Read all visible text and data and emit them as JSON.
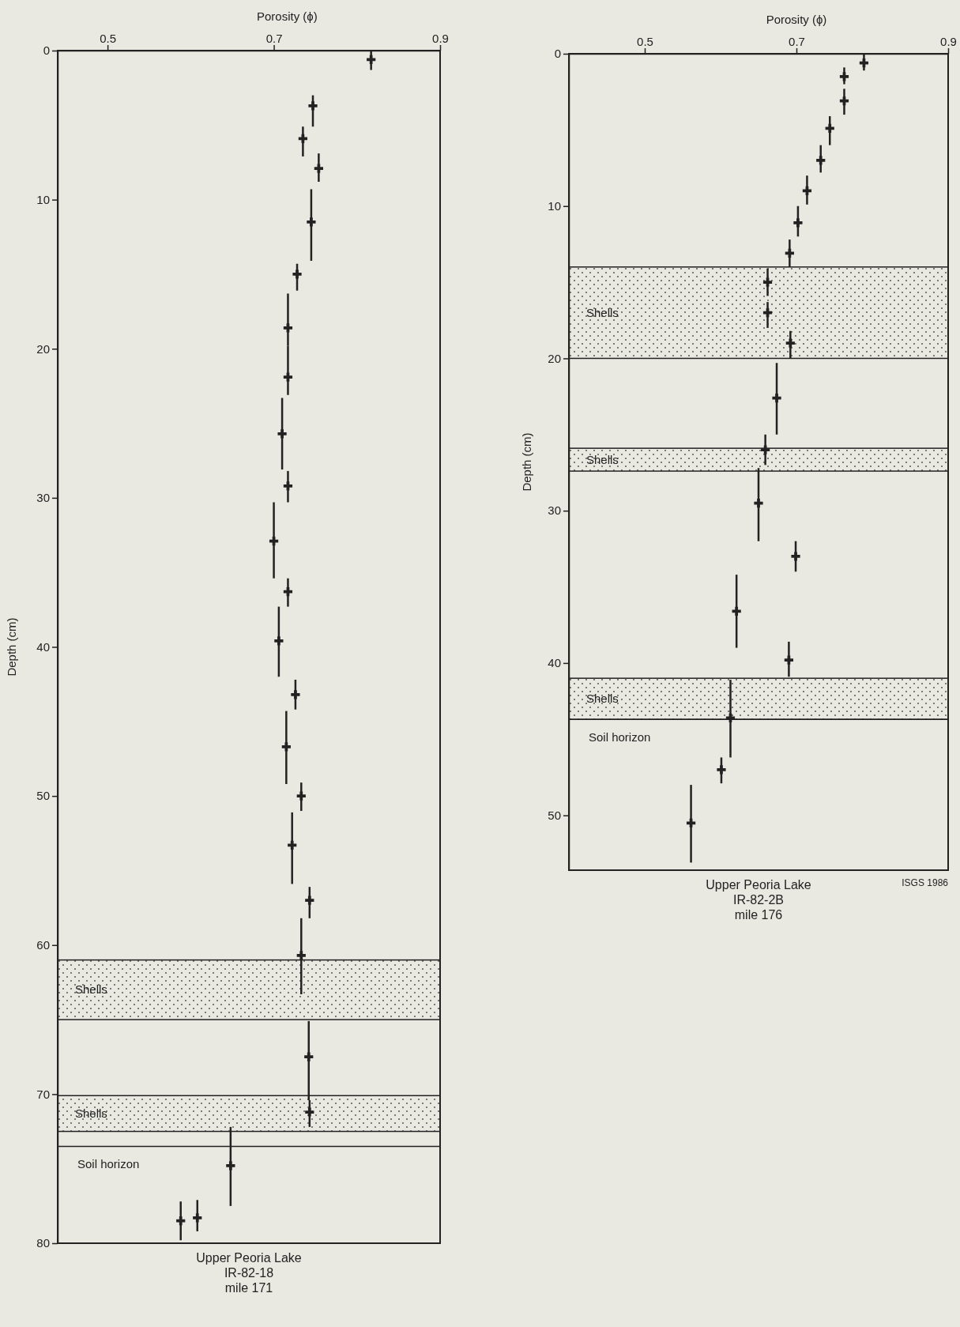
{
  "chart_data": [
    {
      "type": "scatter",
      "xlabel": "Porosity (ϕ)",
      "ylabel": "Depth (cm)",
      "xlim": [
        0.44,
        0.9
      ],
      "xticks": [
        0.5,
        0.7,
        0.9
      ],
      "ylim": [
        80,
        0
      ],
      "yticks": [
        0,
        10,
        20,
        30,
        40,
        50,
        60,
        70,
        80
      ],
      "marker": "cross",
      "x": [
        0.817,
        0.747,
        0.735,
        0.754,
        0.745,
        0.728,
        0.717,
        0.717,
        0.71,
        0.717,
        0.7,
        0.717,
        0.706,
        0.726,
        0.715,
        0.733,
        0.722,
        0.743,
        0.733,
        0.742,
        0.743,
        0.648,
        0.608,
        0.588
      ],
      "values": [
        0.6,
        3.7,
        5.9,
        7.9,
        11.5,
        15.0,
        18.6,
        21.9,
        25.7,
        29.2,
        32.9,
        36.3,
        39.6,
        43.2,
        46.7,
        50.0,
        53.3,
        57.0,
        60.7,
        67.5,
        71.2,
        74.8,
        78.3,
        78.5
      ],
      "errors": [
        [
          0,
          1.3
        ],
        [
          3.0,
          5.1
        ],
        [
          5.1,
          7.1
        ],
        [
          6.9,
          8.8
        ],
        [
          9.3,
          14.1
        ],
        [
          14.3,
          16.1
        ],
        [
          16.3,
          19.8
        ],
        [
          19.8,
          23.1
        ],
        [
          23.3,
          28.1
        ],
        [
          28.2,
          30.3
        ],
        [
          30.3,
          35.4
        ],
        [
          35.4,
          37.3
        ],
        [
          37.3,
          42.0
        ],
        [
          42.2,
          44.2
        ],
        [
          44.3,
          49.2
        ],
        [
          49.1,
          51.0
        ],
        [
          51.1,
          55.9
        ],
        [
          56.1,
          58.2
        ],
        [
          58.2,
          63.3
        ],
        [
          65.1,
          70.4
        ],
        [
          70.4,
          72.2
        ],
        [
          72.2,
          77.5
        ],
        [
          77.1,
          79.2
        ],
        [
          77.2,
          79.8
        ]
      ],
      "bands": [
        {
          "axis": "y",
          "from": 61.0,
          "to": 65.0,
          "label": "Shells"
        },
        {
          "axis": "y",
          "from": 70.1,
          "to": 72.5,
          "label": "Shells"
        }
      ],
      "ref_lines": [
        {
          "axis": "y",
          "value": 73.5,
          "label": "Soil horizon"
        }
      ],
      "annotations": [
        "Upper Peoria Lake\nIR-82-18\nmile 171"
      ]
    },
    {
      "type": "scatter",
      "xlabel": "Porosity (ϕ)",
      "ylabel": "Depth (cm)",
      "xlim": [
        0.4,
        0.9
      ],
      "xticks": [
        0.5,
        0.7,
        0.9
      ],
      "ylim": [
        53.6,
        0
      ],
      "yticks": [
        0,
        10,
        20,
        30,
        40,
        50
      ],
      "marker": "cross",
      "x": [
        0.789,
        0.763,
        0.763,
        0.744,
        0.732,
        0.714,
        0.702,
        0.691,
        0.662,
        0.662,
        0.692,
        0.674,
        0.659,
        0.65,
        0.699,
        0.621,
        0.69,
        0.613,
        0.601,
        0.561
      ],
      "values": [
        0.6,
        1.5,
        3.1,
        4.9,
        7.0,
        9.0,
        11.1,
        13.1,
        15.0,
        17.0,
        19.0,
        22.6,
        26.0,
        29.5,
        33.0,
        36.6,
        39.8,
        43.6,
        47.0,
        50.5
      ],
      "errors": [
        [
          0,
          1.1
        ],
        [
          0.9,
          2.0
        ],
        [
          2.3,
          4.0
        ],
        [
          4.1,
          6.0
        ],
        [
          6.0,
          7.8
        ],
        [
          8.0,
          9.9
        ],
        [
          10.0,
          12.0
        ],
        [
          12.2,
          14.0
        ],
        [
          14.1,
          15.9
        ],
        [
          16.3,
          18.0
        ],
        [
          18.2,
          20.0
        ],
        [
          20.3,
          25.0
        ],
        [
          25.0,
          27.0
        ],
        [
          27.2,
          32.0
        ],
        [
          32.0,
          34.0
        ],
        [
          34.2,
          39.0
        ],
        [
          38.6,
          40.9
        ],
        [
          41.1,
          46.2
        ],
        [
          46.2,
          47.9
        ],
        [
          48.0,
          53.1
        ]
      ],
      "bands": [
        {
          "axis": "y",
          "from": 14.0,
          "to": 20.0,
          "label": "Shells"
        },
        {
          "axis": "y",
          "from": 25.9,
          "to": 27.4,
          "label": "Shells"
        },
        {
          "axis": "y",
          "from": 41.0,
          "to": 43.7,
          "label": "Shells"
        }
      ],
      "ref_lines": [
        {
          "axis": "y",
          "value": 43.7,
          "label": "Soil horizon"
        }
      ],
      "annotations": [
        "Upper Peoria Lake\nIR-82-2B\nmile 176",
        "ISGS 1986"
      ]
    }
  ]
}
